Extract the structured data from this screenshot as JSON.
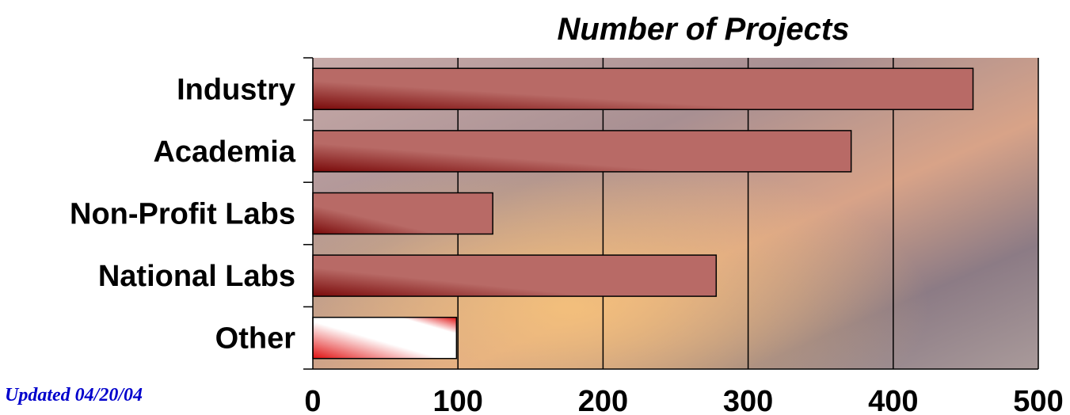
{
  "footnote": "Updated 04/20/04",
  "colors": {
    "bar_dark": "#7a0a0a",
    "bar_light": "#b86a66",
    "other_red": "#e01010",
    "background_photo": "#9a8888"
  },
  "chart_data": {
    "type": "bar",
    "orientation": "horizontal",
    "title": "Number of Projects",
    "xlabel": "",
    "ylabel": "",
    "categories": [
      "Industry",
      "Academia",
      "Non-Profit Labs",
      "National Labs",
      "Other"
    ],
    "values": [
      455,
      371,
      124,
      278,
      99
    ],
    "xlim": [
      0,
      500
    ],
    "xticks": [
      0,
      100,
      200,
      300,
      400,
      500
    ],
    "grid": "vertical",
    "legend": "none"
  }
}
